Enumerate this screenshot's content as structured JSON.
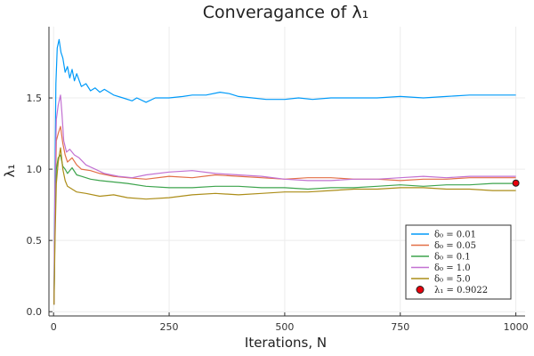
{
  "chart_data": {
    "type": "line",
    "title": "Converagance of λ₁",
    "xlabel": "Iterations, N",
    "ylabel": "λ₁",
    "xlim": [
      -10,
      1020
    ],
    "ylim": [
      -0.03,
      2.0
    ],
    "x_ticks": [
      0,
      250,
      500,
      750,
      1000
    ],
    "y_ticks": [
      0.0,
      0.5,
      1.0,
      1.5
    ],
    "x_tick_labels": [
      "0",
      "250",
      "500",
      "750",
      "1000"
    ],
    "y_tick_labels": [
      "0.0",
      "0.5",
      "1.0",
      "1.5"
    ],
    "grid": true,
    "legend_position": "bottom-right",
    "series": [
      {
        "name": "δ₀ = 0.01",
        "color": "#009af9",
        "points": [
          [
            1,
            0.05
          ],
          [
            3,
            1.0
          ],
          [
            5,
            1.6
          ],
          [
            8,
            1.85
          ],
          [
            12,
            1.91
          ],
          [
            16,
            1.82
          ],
          [
            20,
            1.78
          ],
          [
            25,
            1.68
          ],
          [
            30,
            1.72
          ],
          [
            35,
            1.64
          ],
          [
            40,
            1.7
          ],
          [
            45,
            1.62
          ],
          [
            50,
            1.67
          ],
          [
            60,
            1.58
          ],
          [
            70,
            1.6
          ],
          [
            80,
            1.55
          ],
          [
            90,
            1.57
          ],
          [
            100,
            1.54
          ],
          [
            110,
            1.56
          ],
          [
            130,
            1.52
          ],
          [
            150,
            1.5
          ],
          [
            170,
            1.48
          ],
          [
            180,
            1.5
          ],
          [
            200,
            1.47
          ],
          [
            220,
            1.5
          ],
          [
            250,
            1.5
          ],
          [
            280,
            1.51
          ],
          [
            300,
            1.52
          ],
          [
            330,
            1.52
          ],
          [
            360,
            1.54
          ],
          [
            380,
            1.53
          ],
          [
            400,
            1.51
          ],
          [
            430,
            1.5
          ],
          [
            460,
            1.49
          ],
          [
            500,
            1.49
          ],
          [
            530,
            1.5
          ],
          [
            560,
            1.49
          ],
          [
            600,
            1.5
          ],
          [
            650,
            1.5
          ],
          [
            700,
            1.5
          ],
          [
            750,
            1.51
          ],
          [
            800,
            1.5
          ],
          [
            850,
            1.51
          ],
          [
            900,
            1.52
          ],
          [
            950,
            1.52
          ],
          [
            1000,
            1.52
          ]
        ]
      },
      {
        "name": "δ₀ = 0.05",
        "color": "#e26f46",
        "points": [
          [
            1,
            0.05
          ],
          [
            3,
            0.7
          ],
          [
            6,
            1.2
          ],
          [
            10,
            1.25
          ],
          [
            15,
            1.3
          ],
          [
            20,
            1.18
          ],
          [
            25,
            1.1
          ],
          [
            30,
            1.05
          ],
          [
            40,
            1.08
          ],
          [
            50,
            1.03
          ],
          [
            60,
            1.0
          ],
          [
            80,
            0.99
          ],
          [
            100,
            0.97
          ],
          [
            130,
            0.95
          ],
          [
            160,
            0.94
          ],
          [
            200,
            0.93
          ],
          [
            250,
            0.95
          ],
          [
            300,
            0.94
          ],
          [
            350,
            0.96
          ],
          [
            400,
            0.95
          ],
          [
            450,
            0.94
          ],
          [
            500,
            0.93
          ],
          [
            550,
            0.94
          ],
          [
            600,
            0.94
          ],
          [
            650,
            0.93
          ],
          [
            700,
            0.93
          ],
          [
            750,
            0.92
          ],
          [
            800,
            0.93
          ],
          [
            850,
            0.93
          ],
          [
            900,
            0.94
          ],
          [
            950,
            0.94
          ],
          [
            1000,
            0.94
          ]
        ]
      },
      {
        "name": "δ₀ = 0.1",
        "color": "#3da44d",
        "points": [
          [
            1,
            0.05
          ],
          [
            3,
            0.6
          ],
          [
            6,
            1.0
          ],
          [
            10,
            1.08
          ],
          [
            15,
            1.1
          ],
          [
            20,
            1.02
          ],
          [
            25,
            1.0
          ],
          [
            30,
            0.97
          ],
          [
            40,
            1.01
          ],
          [
            50,
            0.96
          ],
          [
            60,
            0.95
          ],
          [
            80,
            0.93
          ],
          [
            100,
            0.92
          ],
          [
            130,
            0.91
          ],
          [
            160,
            0.9
          ],
          [
            200,
            0.88
          ],
          [
            250,
            0.87
          ],
          [
            300,
            0.87
          ],
          [
            350,
            0.88
          ],
          [
            400,
            0.88
          ],
          [
            450,
            0.87
          ],
          [
            500,
            0.87
          ],
          [
            550,
            0.86
          ],
          [
            600,
            0.87
          ],
          [
            650,
            0.87
          ],
          [
            700,
            0.88
          ],
          [
            750,
            0.89
          ],
          [
            800,
            0.88
          ],
          [
            850,
            0.89
          ],
          [
            900,
            0.89
          ],
          [
            950,
            0.9
          ],
          [
            1000,
            0.9
          ]
        ]
      },
      {
        "name": "δ₀ = 1.0",
        "color": "#c271d2",
        "points": [
          [
            1,
            0.05
          ],
          [
            3,
            0.9
          ],
          [
            6,
            1.35
          ],
          [
            10,
            1.45
          ],
          [
            15,
            1.52
          ],
          [
            18,
            1.4
          ],
          [
            22,
            1.2
          ],
          [
            28,
            1.12
          ],
          [
            35,
            1.14
          ],
          [
            45,
            1.1
          ],
          [
            55,
            1.08
          ],
          [
            70,
            1.03
          ],
          [
            90,
            1.0
          ],
          [
            110,
            0.97
          ],
          [
            140,
            0.95
          ],
          [
            170,
            0.94
          ],
          [
            200,
            0.96
          ],
          [
            250,
            0.98
          ],
          [
            300,
            0.99
          ],
          [
            350,
            0.97
          ],
          [
            400,
            0.96
          ],
          [
            450,
            0.95
          ],
          [
            500,
            0.93
          ],
          [
            550,
            0.92
          ],
          [
            600,
            0.92
          ],
          [
            650,
            0.93
          ],
          [
            700,
            0.93
          ],
          [
            750,
            0.94
          ],
          [
            800,
            0.95
          ],
          [
            850,
            0.94
          ],
          [
            900,
            0.95
          ],
          [
            950,
            0.95
          ],
          [
            1000,
            0.95
          ]
        ]
      },
      {
        "name": "δ₀ = 5.0",
        "color": "#ac8d18",
        "points": [
          [
            1,
            0.05
          ],
          [
            3,
            0.5
          ],
          [
            6,
            0.9
          ],
          [
            10,
            1.05
          ],
          [
            15,
            1.15
          ],
          [
            20,
            1.0
          ],
          [
            25,
            0.92
          ],
          [
            30,
            0.88
          ],
          [
            40,
            0.86
          ],
          [
            50,
            0.84
          ],
          [
            70,
            0.83
          ],
          [
            100,
            0.81
          ],
          [
            130,
            0.82
          ],
          [
            160,
            0.8
          ],
          [
            200,
            0.79
          ],
          [
            250,
            0.8
          ],
          [
            300,
            0.82
          ],
          [
            350,
            0.83
          ],
          [
            400,
            0.82
          ],
          [
            450,
            0.83
          ],
          [
            500,
            0.84
          ],
          [
            550,
            0.84
          ],
          [
            600,
            0.85
          ],
          [
            650,
            0.86
          ],
          [
            700,
            0.86
          ],
          [
            750,
            0.87
          ],
          [
            800,
            0.87
          ],
          [
            850,
            0.86
          ],
          [
            900,
            0.86
          ],
          [
            950,
            0.85
          ],
          [
            1000,
            0.85
          ]
        ]
      }
    ],
    "marker": {
      "name": "λ₁ = 0.9022",
      "color": "#e8000b",
      "x": 1000,
      "y": 0.9022
    }
  }
}
